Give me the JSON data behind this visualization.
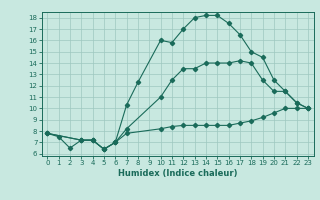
{
  "xlabel": "Humidex (Indice chaleur)",
  "ylabel": "",
  "xlim": [
    -0.5,
    23.5
  ],
  "ylim": [
    5.8,
    18.5
  ],
  "yticks": [
    6,
    7,
    8,
    9,
    10,
    11,
    12,
    13,
    14,
    15,
    16,
    17,
    18
  ],
  "xticks": [
    0,
    1,
    2,
    3,
    4,
    5,
    6,
    7,
    8,
    9,
    10,
    11,
    12,
    13,
    14,
    15,
    16,
    17,
    18,
    19,
    20,
    21,
    22,
    23
  ],
  "bg_color": "#c8e8e0",
  "line_color": "#1a6b5a",
  "grid_color": "#9ec8c0",
  "line1_x": [
    0,
    1,
    2,
    3,
    4,
    5,
    6,
    7,
    10,
    11,
    12,
    13,
    14,
    15,
    16,
    17,
    18,
    19,
    20,
    21,
    22,
    23
  ],
  "line1_y": [
    7.8,
    7.5,
    6.5,
    7.2,
    7.2,
    6.4,
    7.0,
    7.8,
    8.2,
    8.4,
    8.5,
    8.5,
    8.5,
    8.5,
    8.5,
    8.7,
    8.9,
    9.2,
    9.6,
    10.0,
    10.0,
    10.0
  ],
  "line2_x": [
    0,
    3,
    4,
    5,
    6,
    7,
    10,
    11,
    12,
    13,
    14,
    15,
    16,
    17,
    18,
    19,
    20,
    21,
    22,
    23
  ],
  "line2_y": [
    7.8,
    7.2,
    7.2,
    6.4,
    7.0,
    8.2,
    11.0,
    12.5,
    13.5,
    13.5,
    14.0,
    14.0,
    14.0,
    14.2,
    14.0,
    12.5,
    11.5,
    11.5,
    10.5,
    10.0
  ],
  "line3_x": [
    0,
    3,
    4,
    5,
    6,
    7,
    8,
    10,
    11,
    12,
    13,
    14,
    15,
    16,
    17,
    18,
    19,
    20,
    21,
    22,
    23
  ],
  "line3_y": [
    7.8,
    7.2,
    7.2,
    6.4,
    7.0,
    10.3,
    12.3,
    16.0,
    15.8,
    17.0,
    18.0,
    18.2,
    18.2,
    17.5,
    16.5,
    15.0,
    14.5,
    12.5,
    11.5,
    10.5,
    10.0
  ],
  "tick_fontsize": 5,
  "xlabel_fontsize": 6,
  "marker_size": 2.2
}
